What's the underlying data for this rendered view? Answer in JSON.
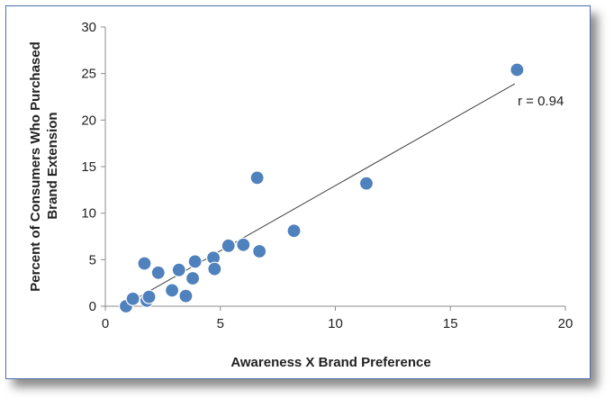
{
  "chart_data": {
    "type": "scatter",
    "title": "",
    "xlabel": "Awareness X Brand Preference",
    "ylabel_lines": [
      "Percent of Consumers Who Purchased",
      "Brand Extension"
    ],
    "xlim": [
      0,
      20
    ],
    "ylim": [
      0,
      30
    ],
    "xticks": [
      0,
      5,
      10,
      15,
      20
    ],
    "yticks": [
      0,
      5,
      10,
      15,
      20,
      25,
      30
    ],
    "grid": false,
    "legend": "none",
    "point_color": "#4f81bd",
    "trendline_color": "#404040",
    "trendline": {
      "x": [
        0.9,
        17.8
      ],
      "y": [
        0.2,
        23.9
      ]
    },
    "annotation": "r = 0.94",
    "points": [
      {
        "x": 0.9,
        "y": 0.0
      },
      {
        "x": 1.2,
        "y": 0.8
      },
      {
        "x": 1.7,
        "y": 4.6
      },
      {
        "x": 1.8,
        "y": 0.6
      },
      {
        "x": 1.9,
        "y": 1.0
      },
      {
        "x": 2.3,
        "y": 3.6
      },
      {
        "x": 2.9,
        "y": 1.7
      },
      {
        "x": 3.2,
        "y": 3.9
      },
      {
        "x": 3.5,
        "y": 1.1
      },
      {
        "x": 3.8,
        "y": 3.0
      },
      {
        "x": 3.9,
        "y": 4.8
      },
      {
        "x": 4.7,
        "y": 5.2
      },
      {
        "x": 4.75,
        "y": 4.0
      },
      {
        "x": 5.35,
        "y": 6.5
      },
      {
        "x": 6.0,
        "y": 6.6
      },
      {
        "x": 6.6,
        "y": 13.8
      },
      {
        "x": 6.7,
        "y": 5.9
      },
      {
        "x": 8.2,
        "y": 8.1
      },
      {
        "x": 11.35,
        "y": 13.2
      },
      {
        "x": 17.9,
        "y": 25.4
      }
    ]
  }
}
